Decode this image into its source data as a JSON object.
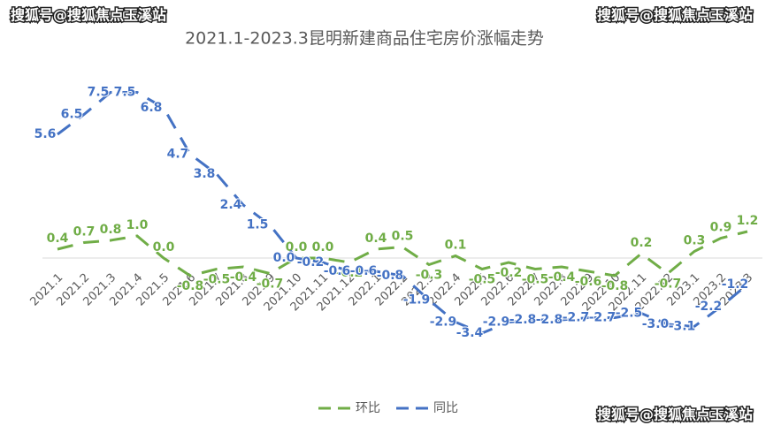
{
  "chart_data": {
    "type": "line",
    "title": "2021.1-2023.3昆明新建商品住宅房价涨幅走势",
    "watermarks": [
      "搜狐号@搜狐焦点玉溪站",
      "搜狐号@搜狐焦点玉溪站",
      "搜狐号@搜狐焦点玉溪站"
    ],
    "categories": [
      "2021.1",
      "2021.2",
      "2021.3",
      "2021.4",
      "2021.5",
      "2021.6",
      "2021.7",
      "2021.8",
      "2021.9",
      "2021.10",
      "2021.11",
      "2021.12",
      "2022.1",
      "2022.2",
      "2022.3",
      "2022.4",
      "2022.5",
      "2022.6",
      "2022.7",
      "2022.8",
      "2022.9",
      "2022.10",
      "2022.11",
      "2022.12",
      "2023.1",
      "2023.2",
      "2023.3"
    ],
    "series": [
      {
        "name": "环比",
        "color": "#70ad47",
        "values": [
          0.4,
          0.7,
          0.8,
          1,
          0,
          -0.8,
          -0.5,
          -0.4,
          -0.7,
          0,
          0,
          -0.2,
          0.4,
          0.5,
          -0.3,
          0.1,
          -0.5,
          -0.2,
          -0.5,
          -0.4,
          -0.6,
          -0.8,
          0.2,
          -0.7,
          0.3,
          0.9,
          1.2
        ],
        "value_labels": [
          "0.4",
          "0.7",
          "0.8",
          "1.0",
          "0.0",
          "-0.8",
          "-0.5",
          "-0.4",
          "-0.7",
          "0.0",
          "0.0",
          "-0.2",
          "0.4",
          "0.5",
          "-0.3",
          "0.1",
          "-0.5",
          "-0.2",
          "-0.5",
          "-0.4",
          "-0.6",
          "-0.8",
          "0.2",
          "-0.7",
          "0.3",
          "0.9",
          "1.2"
        ]
      },
      {
        "name": "同比",
        "color": "#4472c4",
        "values": [
          5.6,
          6.5,
          7.5,
          7.5,
          6.8,
          4.7,
          3.8,
          2.4,
          1.5,
          0,
          -0.2,
          -0.6,
          -0.6,
          -0.8,
          -1.9,
          -2.9,
          -3.4,
          -2.9,
          -2.8,
          -2.8,
          -2.7,
          -2.7,
          -2.5,
          -3,
          -3.1,
          -2.2,
          -1.2
        ],
        "value_labels": [
          "5.6",
          "6.5",
          "7.5",
          "7.5",
          "6.8",
          "4.7",
          "3.8",
          "2.4",
          "1.5",
          "0.0",
          "-0.2",
          "-0.6",
          "-0.6",
          "-0.8",
          "-1.9",
          "-2.9",
          "-3.4",
          "-2.9",
          "-2.8",
          "-2.8",
          "-2.7",
          "-2.7",
          "-2.5",
          "-3.0",
          "-3.1",
          "-2.2",
          "-1.2"
        ]
      }
    ]
  }
}
